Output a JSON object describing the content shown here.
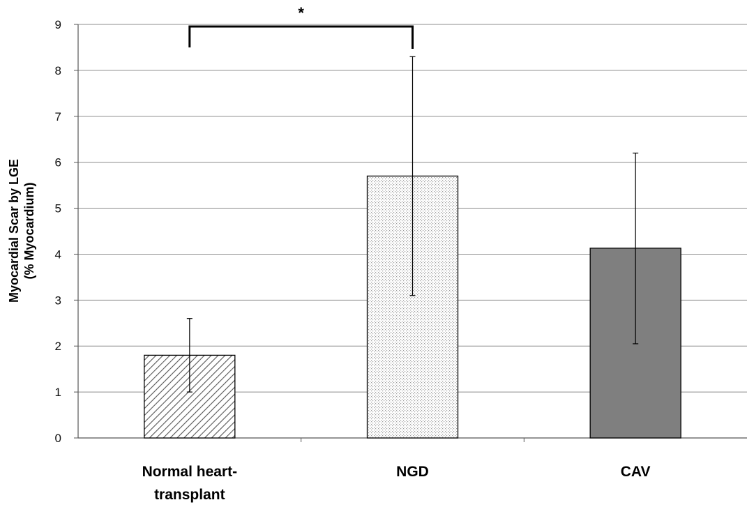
{
  "chart_data": {
    "type": "bar",
    "categories": [
      "Normal heart-transplant",
      "NGD",
      "CAV"
    ],
    "category_label_lines": [
      [
        "Normal heart-",
        "transplant"
      ],
      [
        "NGD"
      ],
      [
        "CAV"
      ]
    ],
    "values": [
      1.8,
      5.7,
      4.13
    ],
    "error_bars": [
      {
        "low": 1.0,
        "high": 2.6
      },
      {
        "low": 3.1,
        "high": 8.3
      },
      {
        "low": 2.05,
        "high": 6.2
      }
    ],
    "bar_fills": [
      "diagonal-hatch",
      "dotted",
      "solid-gray"
    ],
    "fill_colors": {
      "hatch": "#555555",
      "dots": "#9a9a9a",
      "solid": "#7f7f7f"
    },
    "ylabel_lines": [
      "Myocardial Scar by LGE",
      "(% Myocardium)"
    ],
    "ylim": [
      0,
      9
    ],
    "yticks": [
      "0",
      "1",
      "2",
      "3",
      "4",
      "5",
      "6",
      "7",
      "8",
      "9"
    ],
    "grid": true,
    "significance": {
      "between": [
        "Normal heart-transplant",
        "NGD"
      ],
      "label": "*"
    }
  }
}
